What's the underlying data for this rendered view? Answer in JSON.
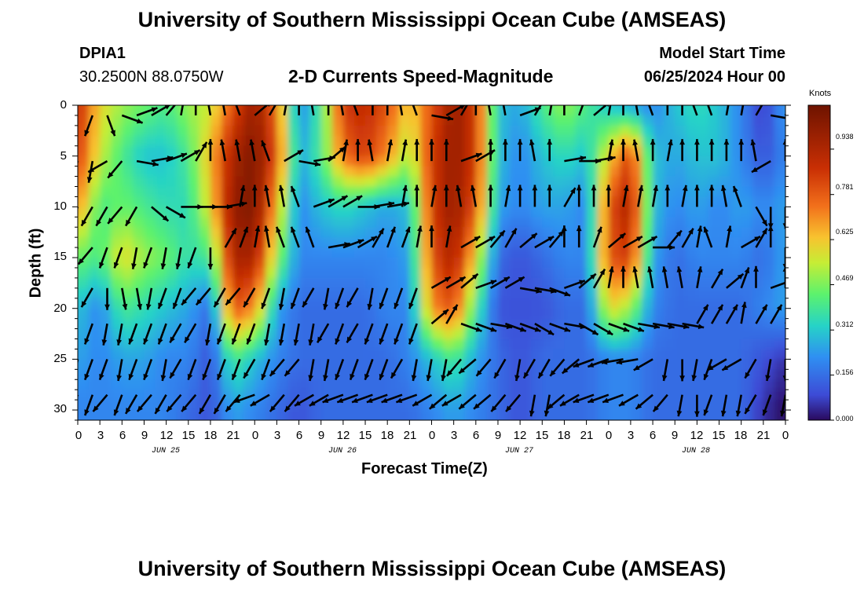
{
  "header": {
    "title": "University of Southern Mississippi Ocean Cube (AMSEAS)",
    "footer_title": "University of Southern Mississippi Ocean Cube (AMSEAS)",
    "station": "DPIA1",
    "location": "30.2500N  88.0750W",
    "model_label": "Model Start Time",
    "model_time": "06/25/2024 Hour 00"
  },
  "chart_data": {
    "type": "heatmap",
    "title": "2-D Currents Speed-Magnitude",
    "xlabel": "Forecast Time(Z)",
    "ylabel": "Depth (ft)",
    "x_ticks": [
      "0",
      "3",
      "6",
      "9",
      "12",
      "15",
      "18",
      "21",
      "0",
      "3",
      "6",
      "9",
      "12",
      "15",
      "18",
      "21",
      "0",
      "3",
      "6",
      "9",
      "12",
      "15",
      "18",
      "21",
      "0",
      "3",
      "6",
      "9",
      "12",
      "15",
      "18",
      "21",
      "0"
    ],
    "x_range_hours": [
      0,
      96
    ],
    "date_labels": [
      {
        "label": "JUN 25",
        "hour": 12
      },
      {
        "label": "JUN 26",
        "hour": 36
      },
      {
        "label": "JUN 27",
        "hour": 60
      },
      {
        "label": "JUN 28",
        "hour": 84
      }
    ],
    "y_ticks": [
      "0",
      "5",
      "10",
      "15",
      "20",
      "25",
      "30"
    ],
    "y_range_ft": [
      0,
      31
    ],
    "colorbar": {
      "title": "Knots",
      "ticks": [
        "0.938",
        "0.781",
        "0.625",
        "0.469",
        "0.312",
        "0.156",
        "0.000"
      ],
      "range": [
        0,
        1.09
      ]
    },
    "speed_field": {
      "hour_step": 3,
      "depth_rows_ft": [
        0,
        5,
        10,
        15,
        20,
        25,
        30
      ],
      "rows": [
        [
          0.9,
          0.6,
          0.5,
          0.45,
          0.4,
          0.5,
          0.55,
          0.8,
          1.0,
          0.75,
          0.2,
          0.4,
          0.85,
          0.9,
          0.8,
          0.6,
          0.8,
          1.0,
          0.85,
          0.3,
          0.25,
          0.4,
          0.5,
          0.4,
          0.3,
          0.25,
          0.2,
          0.3,
          0.35,
          0.3,
          0.2,
          0.05,
          0.25
        ],
        [
          0.85,
          0.55,
          0.4,
          0.3,
          0.3,
          0.4,
          0.65,
          0.95,
          1.05,
          0.8,
          0.25,
          0.4,
          0.75,
          0.85,
          0.7,
          0.5,
          0.85,
          1.0,
          0.85,
          0.3,
          0.2,
          0.3,
          0.35,
          0.3,
          0.6,
          0.85,
          0.3,
          0.25,
          0.3,
          0.3,
          0.2,
          0.1,
          0.2
        ],
        [
          0.7,
          0.4,
          0.45,
          0.4,
          0.35,
          0.35,
          0.6,
          1.0,
          1.05,
          0.65,
          0.2,
          0.3,
          0.35,
          0.3,
          0.25,
          0.3,
          0.85,
          1.0,
          0.8,
          0.25,
          0.2,
          0.25,
          0.25,
          0.2,
          0.8,
          0.95,
          0.3,
          0.2,
          0.25,
          0.2,
          0.25,
          0.2,
          0.25
        ],
        [
          0.45,
          0.4,
          0.6,
          0.5,
          0.45,
          0.35,
          0.4,
          0.95,
          0.95,
          0.5,
          0.2,
          0.2,
          0.2,
          0.2,
          0.2,
          0.25,
          0.8,
          0.95,
          0.6,
          0.15,
          0.1,
          0.15,
          0.2,
          0.2,
          0.8,
          0.85,
          0.25,
          0.15,
          0.2,
          0.2,
          0.2,
          0.15,
          0.25
        ],
        [
          0.3,
          0.2,
          0.4,
          0.35,
          0.3,
          0.25,
          0.15,
          0.8,
          0.7,
          0.25,
          0.15,
          0.15,
          0.15,
          0.15,
          0.2,
          0.2,
          0.7,
          0.8,
          0.4,
          0.1,
          0.1,
          0.1,
          0.15,
          0.15,
          0.6,
          0.5,
          0.2,
          0.15,
          0.15,
          0.15,
          0.15,
          0.2,
          0.25
        ],
        [
          0.25,
          0.2,
          0.25,
          0.25,
          0.2,
          0.2,
          0.1,
          0.4,
          0.3,
          0.2,
          0.15,
          0.15,
          0.15,
          0.15,
          0.15,
          0.2,
          0.3,
          0.4,
          0.25,
          0.15,
          0.1,
          0.15,
          0.15,
          0.15,
          0.2,
          0.2,
          0.15,
          0.15,
          0.15,
          0.15,
          0.15,
          0.1,
          0.05
        ],
        [
          0.2,
          0.2,
          0.2,
          0.2,
          0.2,
          0.15,
          0.1,
          0.25,
          0.2,
          0.15,
          0.1,
          0.15,
          0.15,
          0.15,
          0.15,
          0.15,
          0.2,
          0.25,
          0.2,
          0.15,
          0.1,
          0.15,
          0.15,
          0.15,
          0.2,
          0.2,
          0.15,
          0.15,
          0.15,
          0.15,
          0.15,
          0.05,
          0.0
        ]
      ]
    },
    "vectors": {
      "hour_step": 2,
      "depth_rows_ft": [
        1,
        5.5,
        10,
        14,
        18,
        21.5,
        25,
        28.5
      ],
      "rows": [
        [
          -160,
          -110,
          -70,
          -20,
          20,
          30,
          50,
          80,
          90,
          100,
          100,
          110,
          40,
          60,
          80,
          90,
          100,
          90,
          100,
          110,
          90,
          90,
          100,
          110,
          -10,
          30,
          60,
          90,
          100,
          100,
          20,
          60,
          80,
          90,
          70,
          40,
          80,
          90,
          100,
          110,
          90,
          90,
          110,
          110,
          80,
          80,
          60,
          -10,
          70
        ],
        [
          -110,
          -100,
          -150,
          -130,
          -10,
          10,
          20,
          30,
          60,
          90,
          100,
          100,
          100,
          110,
          30,
          -10,
          10,
          40,
          80,
          90,
          100,
          80,
          80,
          90,
          90,
          90,
          20,
          30,
          90,
          90,
          90,
          100,
          90,
          10,
          0,
          10,
          80,
          90,
          100,
          90,
          80,
          90,
          90,
          90,
          90,
          90,
          100,
          -150,
          90
        ],
        [
          -110,
          -120,
          -120,
          -130,
          -120,
          -40,
          -30,
          0,
          0,
          0,
          10,
          80,
          90,
          100,
          100,
          110,
          20,
          30,
          30,
          0,
          10,
          10,
          80,
          90,
          80,
          90,
          100,
          100,
          90,
          80,
          90,
          90,
          90,
          60,
          90,
          90,
          90,
          80,
          80,
          80,
          90,
          80,
          90,
          90,
          100,
          110,
          -60,
          -90,
          -90
        ],
        [
          -120,
          -130,
          -110,
          -110,
          -100,
          -110,
          -100,
          -100,
          -110,
          -90,
          60,
          70,
          80,
          100,
          110,
          110,
          110,
          10,
          20,
          30,
          60,
          70,
          70,
          80,
          90,
          80,
          30,
          30,
          50,
          60,
          40,
          30,
          50,
          90,
          90,
          70,
          40,
          30,
          30,
          0,
          50,
          60,
          80,
          110,
          80,
          30,
          60,
          90,
          -90
        ],
        [
          -140,
          -120,
          -90,
          -80,
          -80,
          -100,
          -110,
          -110,
          -130,
          -130,
          -120,
          -130,
          -120,
          -110,
          -100,
          -110,
          -120,
          -100,
          -110,
          -120,
          -100,
          -110,
          -110,
          -110,
          30,
          30,
          40,
          20,
          30,
          30,
          -10,
          -10,
          -20,
          20,
          40,
          60,
          80,
          90,
          100,
          100,
          100,
          100,
          80,
          60,
          40,
          70,
          90,
          20,
          90
        ],
        [
          -160,
          -110,
          -100,
          -100,
          -110,
          -110,
          -110,
          -120,
          -120,
          -100,
          -110,
          -110,
          -110,
          -100,
          -100,
          -100,
          -100,
          -120,
          -110,
          -120,
          -110,
          -110,
          -110,
          -110,
          40,
          60,
          -20,
          -20,
          -10,
          -20,
          -20,
          -30,
          -20,
          -10,
          -30,
          -30,
          -20,
          -20,
          -10,
          -10,
          -10,
          -10,
          60,
          60,
          60,
          80,
          60,
          60,
          60
        ],
        [
          -100,
          -110,
          -110,
          -100,
          -110,
          -110,
          -100,
          -120,
          -110,
          -110,
          -110,
          -110,
          -120,
          -110,
          -130,
          -130,
          -100,
          -100,
          -110,
          -110,
          -110,
          -110,
          -120,
          -100,
          -100,
          -100,
          -130,
          -140,
          -130,
          -120,
          -100,
          -120,
          -120,
          -130,
          -140,
          -160,
          -160,
          -170,
          -170,
          -150,
          -100,
          -90,
          -100,
          -110,
          -150,
          -150,
          -120,
          -100,
          -90
        ],
        [
          -110,
          -110,
          -130,
          -110,
          -120,
          -130,
          -120,
          -130,
          -130,
          -120,
          -120,
          -130,
          -160,
          -150,
          -130,
          -130,
          -150,
          -150,
          -160,
          -160,
          -160,
          -160,
          -160,
          -160,
          -150,
          -140,
          -150,
          -140,
          -140,
          -130,
          -130,
          -100,
          -100,
          -140,
          -150,
          -160,
          -160,
          -160,
          -150,
          -140,
          -130,
          -100,
          -90,
          -110,
          -100,
          -100,
          -120,
          -110,
          -100
        ]
      ]
    }
  }
}
